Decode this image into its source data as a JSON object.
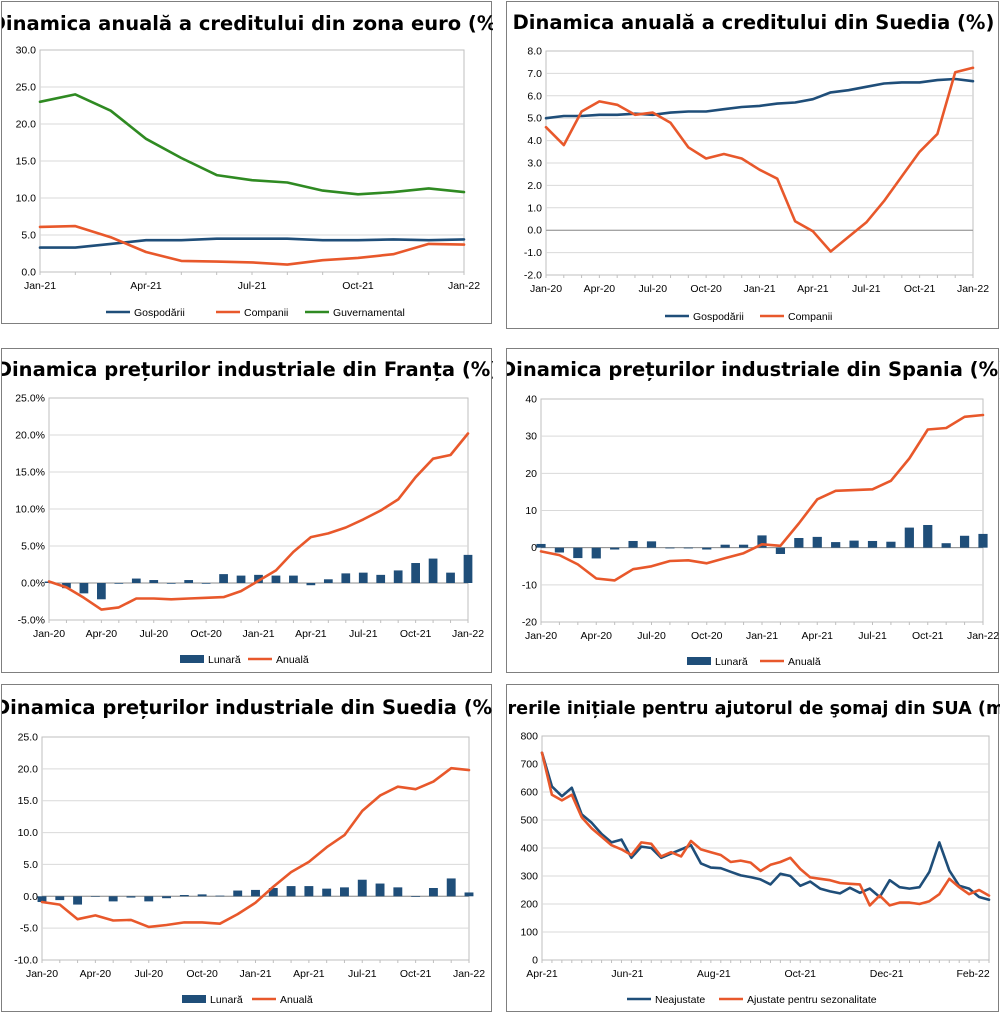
{
  "colors": {
    "navy": "#1f4e79",
    "orange": "#e8582b",
    "green": "#2f8a22",
    "grid": "#d9d9d9",
    "axis": "#bfbfbf"
  },
  "chart_data": [
    {
      "id": "ch1",
      "type": "line",
      "title": "Dinamica anuală a creditului din zona euro (%)",
      "ylim": [
        0,
        30
      ],
      "yticks": [
        "0.0",
        "5.0",
        "10.0",
        "15.0",
        "20.0",
        "25.0",
        "30.0"
      ],
      "ystep": 5,
      "x_labels": [
        "Jan-21",
        "Apr-21",
        "Jul-21",
        "Oct-21",
        "Jan-22"
      ],
      "x_label_idx": [
        0,
        3,
        6,
        9,
        12
      ],
      "n": 13,
      "series": [
        {
          "name": "Gospodării",
          "color": "#1f4e79",
          "values": [
            3.3,
            3.3,
            3.8,
            4.3,
            4.3,
            4.5,
            4.5,
            4.5,
            4.3,
            4.3,
            4.4,
            4.3,
            4.4
          ]
        },
        {
          "name": "Companii",
          "color": "#e8582b",
          "values": [
            6.1,
            6.2,
            4.7,
            2.7,
            1.5,
            1.4,
            1.3,
            1.0,
            1.6,
            1.9,
            2.4,
            3.8,
            3.7
          ]
        },
        {
          "name": "Guvernamental",
          "color": "#2f8a22",
          "values": [
            23.0,
            24.0,
            21.8,
            18.0,
            15.4,
            13.1,
            12.4,
            12.1,
            11.0,
            10.5,
            10.8,
            11.3,
            10.8
          ]
        }
      ]
    },
    {
      "id": "ch2",
      "type": "line",
      "title": "Dinamica anuală a creditului din Suedia (%)",
      "ylim": [
        -2,
        8
      ],
      "yticks": [
        "-2.0",
        "-1.0",
        "0.0",
        "1.0",
        "2.0",
        "3.0",
        "4.0",
        "5.0",
        "6.0",
        "7.0",
        "8.0"
      ],
      "ystep": 1,
      "x_labels": [
        "Jan-20",
        "Apr-20",
        "Jul-20",
        "Oct-20",
        "Jan-21",
        "Apr-21",
        "Jul-21",
        "Oct-21",
        "Jan-22"
      ],
      "x_label_idx": [
        0,
        3,
        6,
        9,
        12,
        15,
        18,
        21,
        24
      ],
      "n": 25,
      "series": [
        {
          "name": "Gospodării",
          "color": "#1f4e79",
          "values": [
            5.0,
            5.1,
            5.1,
            5.15,
            5.15,
            5.2,
            5.15,
            5.25,
            5.3,
            5.3,
            5.4,
            5.5,
            5.55,
            5.65,
            5.7,
            5.85,
            6.15,
            6.25,
            6.4,
            6.55,
            6.6,
            6.6,
            6.7,
            6.75,
            6.65
          ]
        },
        {
          "name": "Companii",
          "color": "#e8582b",
          "values": [
            4.6,
            3.8,
            5.3,
            5.75,
            5.6,
            5.15,
            5.25,
            4.8,
            3.7,
            3.2,
            3.4,
            3.2,
            2.7,
            2.3,
            0.4,
            -0.05,
            -0.95,
            -0.3,
            0.35,
            1.3,
            2.4,
            3.5,
            4.3,
            7.05,
            7.25
          ]
        }
      ]
    },
    {
      "id": "ch3",
      "type": "combo",
      "title": "Dinamica prețurilor industriale din Franța (%)",
      "ylim": [
        -5,
        25
      ],
      "yticks": [
        "-5.0%",
        "0.0%",
        "5.0%",
        "10.0%",
        "15.0%",
        "20.0%",
        "25.0%"
      ],
      "ystep": 5,
      "x_labels": [
        "Jan-20",
        "Apr-20",
        "Jul-20",
        "Oct-20",
        "Jan-21",
        "Apr-21",
        "Jul-21",
        "Oct-21",
        "Jan-22"
      ],
      "x_label_idx": [
        0,
        3,
        6,
        9,
        12,
        15,
        18,
        21,
        24
      ],
      "n": 25,
      "bars": {
        "name": "Lunară",
        "color": "#1f4e79",
        "values": [
          0.2,
          -0.7,
          -1.4,
          -2.2,
          -0.1,
          0.6,
          0.4,
          -0.1,
          0.4,
          -0.1,
          1.2,
          1.0,
          1.1,
          1.0,
          1.0,
          -0.3,
          0.5,
          1.3,
          1.4,
          1.1,
          1.7,
          2.7,
          3.3,
          1.4,
          3.8
        ]
      },
      "series": [
        {
          "name": "Anuală",
          "color": "#e8582b",
          "values": [
            0.2,
            -0.6,
            -2.0,
            -3.6,
            -3.3,
            -2.1,
            -2.1,
            -2.2,
            -2.1,
            -2.0,
            -1.9,
            -1.1,
            0.3,
            1.7,
            4.2,
            6.2,
            6.7,
            7.5,
            8.6,
            9.8,
            11.3,
            14.3,
            16.8,
            17.3,
            20.2
          ]
        }
      ]
    },
    {
      "id": "ch4",
      "type": "combo",
      "title": "Dinamica prețurilor industriale din Spania (%)",
      "ylim": [
        -20,
        40
      ],
      "yticks": [
        "-20",
        "-10",
        "0",
        "10",
        "20",
        "30",
        "40"
      ],
      "ystep": 10,
      "x_labels": [
        "Jan-20",
        "Apr-20",
        "Jul-20",
        "Oct-20",
        "Jan-21",
        "Apr-21",
        "Jul-21",
        "Oct-21",
        "Jan-22"
      ],
      "x_label_idx": [
        0,
        3,
        6,
        9,
        12,
        15,
        18,
        21,
        24
      ],
      "n": 25,
      "bars": {
        "name": "Lunară",
        "color": "#1f4e79",
        "values": [
          1.0,
          -1.3,
          -2.8,
          -2.9,
          -0.5,
          1.8,
          1.7,
          -0.2,
          -0.2,
          -0.5,
          0.8,
          0.8,
          3.3,
          -1.7,
          2.6,
          2.9,
          1.5,
          1.9,
          1.8,
          1.6,
          5.4,
          6.1,
          1.2,
          3.2,
          3.7
        ]
      },
      "series": [
        {
          "name": "Anuală",
          "color": "#e8582b",
          "values": [
            -1.0,
            -2.0,
            -4.5,
            -8.3,
            -8.8,
            -5.8,
            -5.0,
            -3.6,
            -3.4,
            -4.2,
            -2.8,
            -1.5,
            0.9,
            0.5,
            6.5,
            13.0,
            15.3,
            15.5,
            15.7,
            18.0,
            24.0,
            31.8,
            32.2,
            35.2,
            35.7
          ]
        }
      ]
    },
    {
      "id": "ch5",
      "type": "combo",
      "title": "Dinamica prețurilor industriale din Suedia (%)",
      "ylim": [
        -10,
        25
      ],
      "yticks": [
        "-10.0",
        "-5.0",
        "0.0",
        "5.0",
        "10.0",
        "15.0",
        "20.0",
        "25.0"
      ],
      "ystep": 5,
      "x_labels": [
        "Jan-20",
        "Apr-20",
        "Jul-20",
        "Oct-20",
        "Jan-21",
        "Apr-21",
        "Jul-21",
        "Oct-21",
        "Jan-22"
      ],
      "x_label_idx": [
        0,
        3,
        6,
        9,
        12,
        15,
        18,
        21,
        24
      ],
      "n": 25,
      "bars": {
        "name": "Lunară",
        "color": "#1f4e79",
        "values": [
          -0.9,
          -0.6,
          -1.3,
          0.0,
          -0.8,
          -0.2,
          -0.8,
          -0.3,
          0.2,
          0.3,
          0.1,
          0.9,
          1.0,
          1.3,
          1.6,
          1.6,
          1.2,
          1.4,
          2.6,
          2.0,
          1.4,
          -0.1,
          1.3,
          2.8,
          0.6
        ]
      },
      "series": [
        {
          "name": "Anuală",
          "color": "#e8582b",
          "values": [
            -0.9,
            -1.3,
            -3.6,
            -3.0,
            -3.8,
            -3.7,
            -4.8,
            -4.5,
            -4.1,
            -4.1,
            -4.3,
            -2.8,
            -1.0,
            1.5,
            3.8,
            5.4,
            7.7,
            9.6,
            13.4,
            15.8,
            17.2,
            16.8,
            18.0,
            20.1,
            19.8
          ]
        }
      ]
    },
    {
      "id": "ch6",
      "type": "line",
      "title": "Cererile inițiale pentru ajutorul de şomaj din SUA (mii)",
      "ylim": [
        0,
        800
      ],
      "yticks": [
        "0",
        "100",
        "200",
        "300",
        "400",
        "500",
        "600",
        "700",
        "800"
      ],
      "ystep": 100,
      "x_labels": [
        "Apr-21",
        "Jun-21",
        "Aug-21",
        "Oct-21",
        "Dec-21",
        "Feb-22"
      ],
      "x_label_idx": [
        0,
        8.6,
        17.3,
        26,
        34.7,
        43.4
      ],
      "n": 46,
      "series": [
        {
          "name": "Neajustate",
          "color": "#1f4e79",
          "values": [
            740,
            620,
            585,
            615,
            520,
            490,
            450,
            420,
            430,
            365,
            405,
            400,
            365,
            380,
            395,
            410,
            345,
            330,
            328,
            315,
            302,
            296,
            288,
            270,
            308,
            300,
            265,
            280,
            255,
            245,
            238,
            258,
            240,
            255,
            225,
            285,
            260,
            255,
            260,
            315,
            420,
            320,
            265,
            255,
            225,
            215
          ]
        },
        {
          "name": "Ajustate pentru sezonalitate",
          "color": "#e8582b",
          "values": [
            740,
            590,
            570,
            590,
            510,
            470,
            440,
            410,
            395,
            375,
            420,
            415,
            370,
            385,
            370,
            425,
            395,
            385,
            375,
            350,
            355,
            348,
            318,
            340,
            350,
            365,
            325,
            295,
            290,
            285,
            275,
            272,
            270,
            195,
            230,
            195,
            205,
            205,
            200,
            210,
            235,
            290,
            260,
            235,
            250,
            230
          ]
        }
      ]
    }
  ]
}
